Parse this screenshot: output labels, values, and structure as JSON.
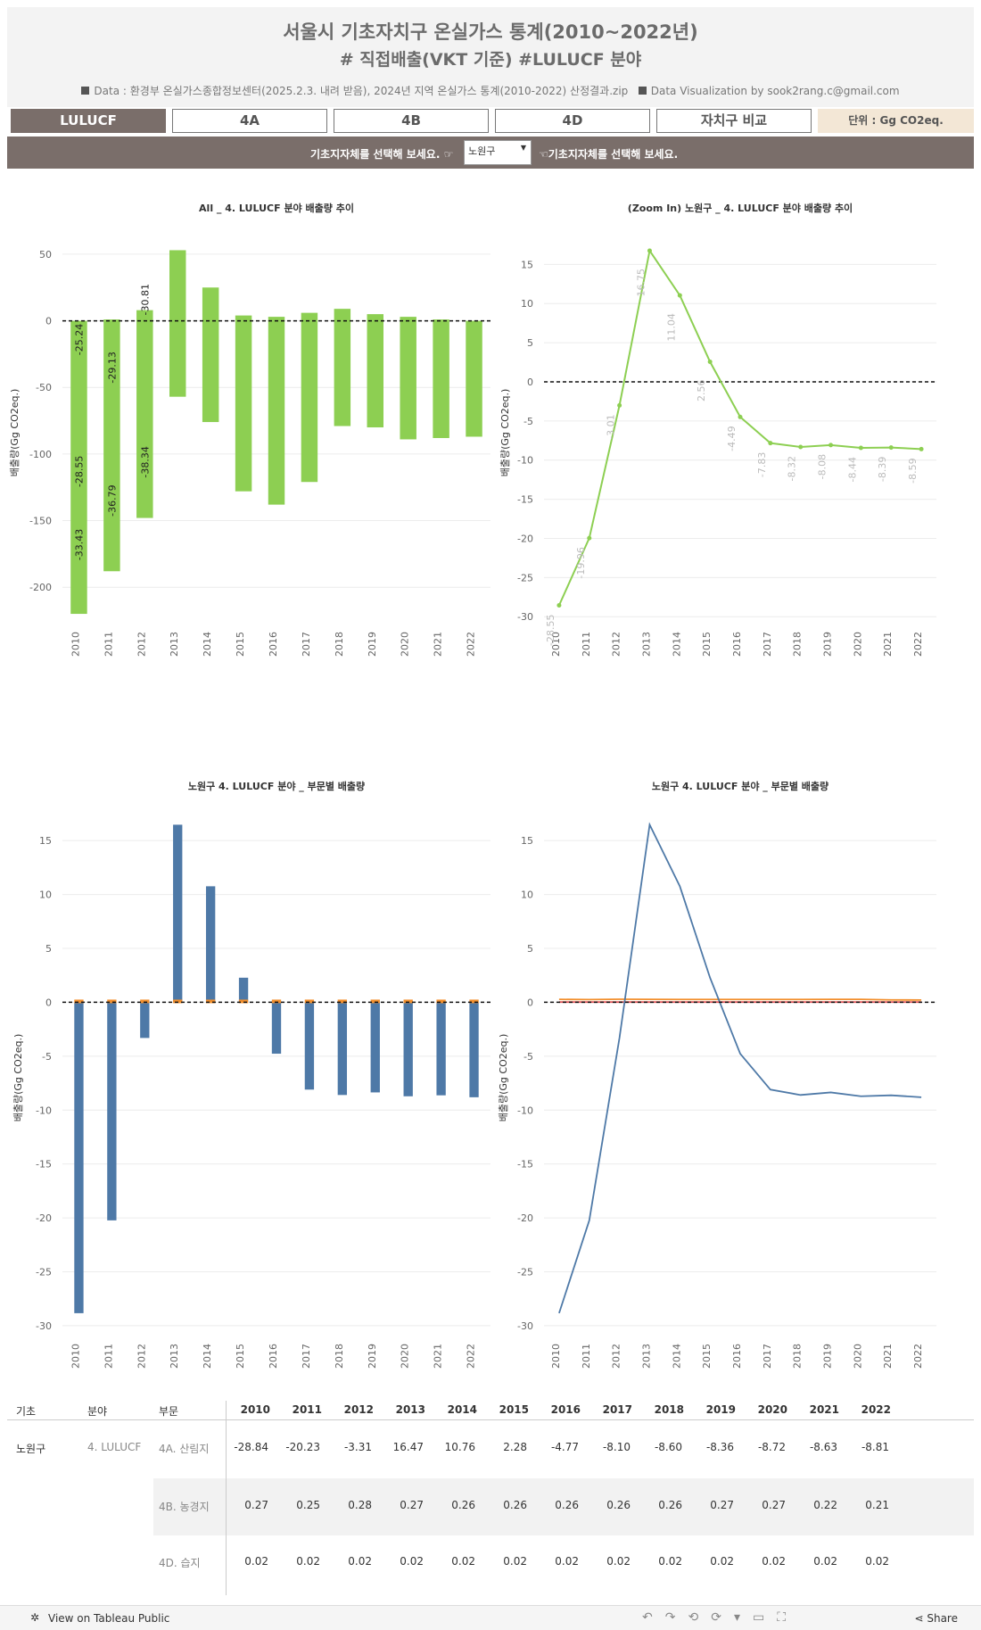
{
  "header": {
    "title_line1": "서울시 기초자치구 온실가스 통계(2010~2022년)",
    "title_line2": "# 직접배출(VKT 기준)   #LULUCF 분야",
    "source_text": "Data : 환경부 온실가스종합정보센터(2025.2.3. 내려 받음), 2024년 지역 온실가스 통계(2010-2022) 산정결과.zip",
    "credit_text": "Data Visualization by sook2rang.c@gmail.com"
  },
  "nav": {
    "tabs": [
      "LULUCF",
      "4A",
      "4B",
      "4D",
      "자치구 비교"
    ],
    "unit_label": "단위 : Gg CO2eq."
  },
  "selector": {
    "prompt_left": "기초지자체를 선택해 보세요. ☞",
    "prompt_right": "☜기초지자체를 선택해 보세요.",
    "selected": "노원구"
  },
  "colors": {
    "accent_green": "#8dcf52",
    "forest_blue": "#4e79a7",
    "farm_orange": "#f28e2b",
    "wetland_red": "#e15759",
    "nav_dark": "#7a6e6a",
    "unit_bg": "#f3e7d6"
  },
  "chart_data": [
    {
      "type": "bar",
      "title": "All _ 4. LULUCF 분야 배출량 추이",
      "ylabel": "배출량(Gg CO2eq.)",
      "categories": [
        "2010",
        "2011",
        "2012",
        "2013",
        "2014",
        "2015",
        "2016",
        "2017",
        "2018",
        "2019",
        "2020",
        "2021",
        "2022"
      ],
      "bars": [
        [
          -220,
          0
        ],
        [
          -188,
          1
        ],
        [
          -148,
          8
        ],
        [
          -57,
          53
        ],
        [
          -76,
          25
        ],
        [
          -128,
          4
        ],
        [
          -138,
          3
        ],
        [
          -121,
          6
        ],
        [
          -79,
          9
        ],
        [
          -80,
          5
        ],
        [
          -89,
          3
        ],
        [
          -88,
          1
        ],
        [
          -87,
          0
        ]
      ],
      "labels": [
        {
          "x": "2010",
          "items": [
            [
              "-25.24",
              -14
            ],
            [
              "-28.55",
              -113
            ],
            [
              "-33.43",
              -168
            ]
          ]
        },
        {
          "x": "2011",
          "items": [
            [
              "-29.13",
              -35
            ],
            [
              "-36.79",
              -135
            ]
          ]
        },
        {
          "x": "2012",
          "items": [
            [
              "-30.81",
              16
            ],
            [
              "-38.34",
              -106
            ]
          ]
        }
      ],
      "yticks": [
        50,
        0,
        -50,
        -100,
        -150,
        -200
      ],
      "ylim": [
        -228,
        60
      ],
      "zero_line": "dashed"
    },
    {
      "type": "line",
      "title": "(Zoom In) 노원구 _ 4. LULUCF 분야 배출량 추이",
      "ylabel": "배출량(Gg CO2eq.)",
      "categories": [
        "2010",
        "2011",
        "2012",
        "2013",
        "2014",
        "2015",
        "2016",
        "2017",
        "2018",
        "2019",
        "2020",
        "2021",
        "2022"
      ],
      "values": [
        -28.55,
        -19.96,
        -3.01,
        16.75,
        11.04,
        2.56,
        -4.49,
        -7.83,
        -8.32,
        -8.08,
        -8.44,
        -8.39,
        -8.59
      ],
      "value_labels": [
        "-28.55",
        "-19.96",
        "-3.01",
        "16.75",
        "11.04",
        "2.56",
        "-4.49",
        "-7.83",
        "-8.32",
        "-8.08",
        "-8.44",
        "-8.39",
        "-8.59"
      ],
      "yticks": [
        15,
        10,
        5,
        0,
        -5,
        -10,
        -15,
        -20,
        -25,
        -30
      ],
      "ylim": [
        -31,
        18
      ],
      "zero_line": "dashed"
    },
    {
      "type": "bar",
      "title": "노원구 4. LULUCF 분야 _ 부문별 배출량",
      "ylabel": "배출량(Gg CO2eq.)",
      "categories": [
        "2010",
        "2011",
        "2012",
        "2013",
        "2014",
        "2015",
        "2016",
        "2017",
        "2018",
        "2019",
        "2020",
        "2021",
        "2022"
      ],
      "series": [
        {
          "name": "4A. 산림지",
          "values": [
            -28.84,
            -20.23,
            -3.31,
            16.47,
            10.76,
            2.28,
            -4.77,
            -8.1,
            -8.6,
            -8.36,
            -8.72,
            -8.63,
            -8.81
          ]
        },
        {
          "name": "4B. 농경지",
          "values": [
            0.27,
            0.25,
            0.28,
            0.27,
            0.26,
            0.26,
            0.26,
            0.26,
            0.26,
            0.27,
            0.27,
            0.22,
            0.21
          ]
        }
      ],
      "yticks": [
        15,
        10,
        5,
        0,
        -5,
        -10,
        -15,
        -20,
        -25,
        -30
      ],
      "ylim": [
        -31,
        17
      ],
      "zero_line": "dashed"
    },
    {
      "type": "line",
      "title": "노원구 4. LULUCF 분야 _ 부문별 배출량",
      "ylabel": "배출량(Gg CO2eq.)",
      "categories": [
        "2010",
        "2011",
        "2012",
        "2013",
        "2014",
        "2015",
        "2016",
        "2017",
        "2018",
        "2019",
        "2020",
        "2021",
        "2022"
      ],
      "series": [
        {
          "name": "4A. 산림지",
          "values": [
            -28.84,
            -20.23,
            -3.31,
            16.47,
            10.76,
            2.28,
            -4.77,
            -8.1,
            -8.6,
            -8.36,
            -8.72,
            -8.63,
            -8.81
          ]
        },
        {
          "name": "4B. 농경지",
          "values": [
            0.27,
            0.25,
            0.28,
            0.27,
            0.26,
            0.26,
            0.26,
            0.26,
            0.26,
            0.27,
            0.27,
            0.22,
            0.21
          ]
        },
        {
          "name": "4D. 습지",
          "values": [
            0.02,
            0.02,
            0.02,
            0.02,
            0.02,
            0.02,
            0.02,
            0.02,
            0.02,
            0.02,
            0.02,
            0.02,
            0.02
          ]
        }
      ],
      "yticks": [
        15,
        10,
        5,
        0,
        -5,
        -10,
        -15,
        -20,
        -25,
        -30
      ],
      "ylim": [
        -31,
        17
      ],
      "zero_line": "dashed"
    },
    {
      "type": "table",
      "columns": [
        "기초",
        "분야",
        "부문",
        "2010",
        "2011",
        "2012",
        "2013",
        "2014",
        "2015",
        "2016",
        "2017",
        "2018",
        "2019",
        "2020",
        "2021",
        "2022"
      ],
      "region": "노원구",
      "sector": "4. LULUCF",
      "rows": [
        {
          "sub": "4A. 산림지",
          "values": [
            "-28.84",
            "-20.23",
            "-3.31",
            "16.47",
            "10.76",
            "2.28",
            "-4.77",
            "-8.10",
            "-8.60",
            "-8.36",
            "-8.72",
            "-8.63",
            "-8.81"
          ]
        },
        {
          "sub": "4B. 농경지",
          "values": [
            "0.27",
            "0.25",
            "0.28",
            "0.27",
            "0.26",
            "0.26",
            "0.26",
            "0.26",
            "0.26",
            "0.27",
            "0.27",
            "0.22",
            "0.21"
          ]
        },
        {
          "sub": "4D. 습지",
          "values": [
            "0.02",
            "0.02",
            "0.02",
            "0.02",
            "0.02",
            "0.02",
            "0.02",
            "0.02",
            "0.02",
            "0.02",
            "0.02",
            "0.02",
            "0.02"
          ]
        }
      ]
    }
  ],
  "footer": {
    "view_text": "View on Tableau Public",
    "share_text": "Share"
  }
}
